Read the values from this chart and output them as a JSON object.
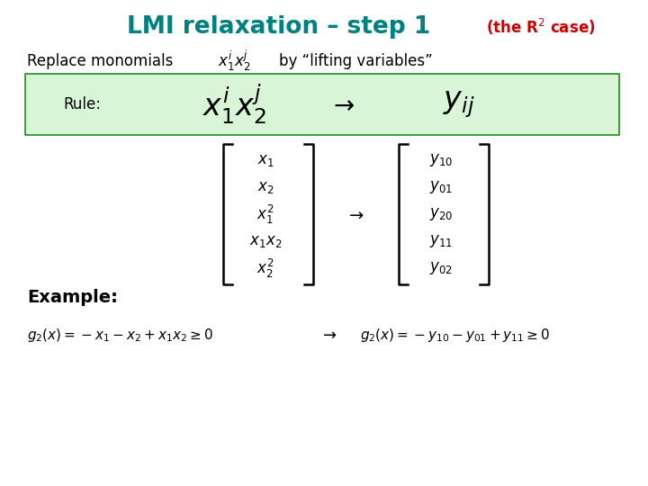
{
  "background_color": "#ffffff",
  "title_color": "#008080",
  "red_color": "#cc0000",
  "green_box_facecolor": "#d8f5d8",
  "green_box_edgecolor": "#228B22",
  "text_color": "#000000",
  "figsize": [
    7.2,
    5.4
  ],
  "dpi": 100,
  "title_main": "LMI relaxation – step 1",
  "title_annotation": "(the R$^2$ case)",
  "replace_text": "Replace monomials",
  "replace_math": "$x_1^i x_2^j$",
  "replace_by": "by “lifting variables”",
  "rule_label": "Rule:",
  "rule_lhs": "$x_1^i x_2^j$",
  "rule_rhs": "$y_{ij}$",
  "left_entries": [
    "$x_1$",
    "$x_2$",
    "$x_1^2$",
    "$x_1 x_2$",
    "$x_2^2$"
  ],
  "right_entries": [
    "$y_{10}$",
    "$y_{01}$",
    "$y_{20}$",
    "$y_{11}$",
    "$y_{02}$"
  ],
  "example_label": "Example:",
  "eq_left": "$g_2(x) = -x_1 - x_2 + x_1 x_2 \\geq 0$",
  "eq_right": "$g_2(x) = -y_{10} - y_{01} + y_{11} \\geq 0$"
}
